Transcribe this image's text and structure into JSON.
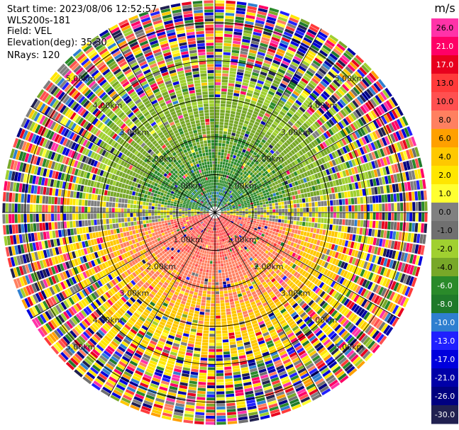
{
  "header": {
    "start_time": "Start time: 2023/08/06 12:52:57",
    "instrument": "WLS200s-181",
    "field": "Field: VEL",
    "elevation": "Elevation(deg): 35.30",
    "nrays": "NRays: 120"
  },
  "colorbar": {
    "unit": "m/s",
    "ticks": [
      "26.0",
      "21.0",
      "17.0",
      "13.0",
      "10.0",
      "8.0",
      "6.0",
      "4.0",
      "2.0",
      "1.0",
      "0.0",
      "-1.0",
      "-2.0",
      "-4.0",
      "-6.0",
      "-8.0",
      "-10.0",
      "-13.0",
      "-17.0",
      "-21.0",
      "-26.0",
      "-30.0"
    ],
    "colors": [
      "#ff33a8",
      "#ff0066",
      "#e8001e",
      "#ff3a3a",
      "#ff5050",
      "#ff8060",
      "#ffa000",
      "#ffc800",
      "#ffe600",
      "#ffff30",
      "#808080",
      "#707070",
      "#a0d030",
      "#78a828",
      "#2a8a2a",
      "#1f7a2a",
      "#2f7fd0",
      "#2020ff",
      "#0000dd",
      "#0000a8",
      "#000080",
      "#202050"
    ]
  },
  "chart_data": {
    "type": "heatmap",
    "subtype": "polar-ppi",
    "field": "VEL",
    "unit": "m/s",
    "nrays": 120,
    "range_rings_km": [
      1.0,
      2.0,
      3.0,
      4.0,
      5.0
    ],
    "range_ring_labels": [
      "1.00km",
      "2.00km",
      "3.00km",
      "4.00km",
      "5.00km"
    ],
    "color_levels": [
      -30,
      -26,
      -21,
      -17,
      -13,
      -10,
      -8,
      -6,
      -4,
      -2,
      -1,
      0,
      1,
      2,
      4,
      6,
      8,
      10,
      13,
      17,
      21,
      26
    ],
    "pattern": {
      "north_sector_velocity": -5,
      "south_sector_velocity": 6,
      "near_range_km": 3.0,
      "far_range": "noisy / mixed values"
    },
    "grid": true
  }
}
